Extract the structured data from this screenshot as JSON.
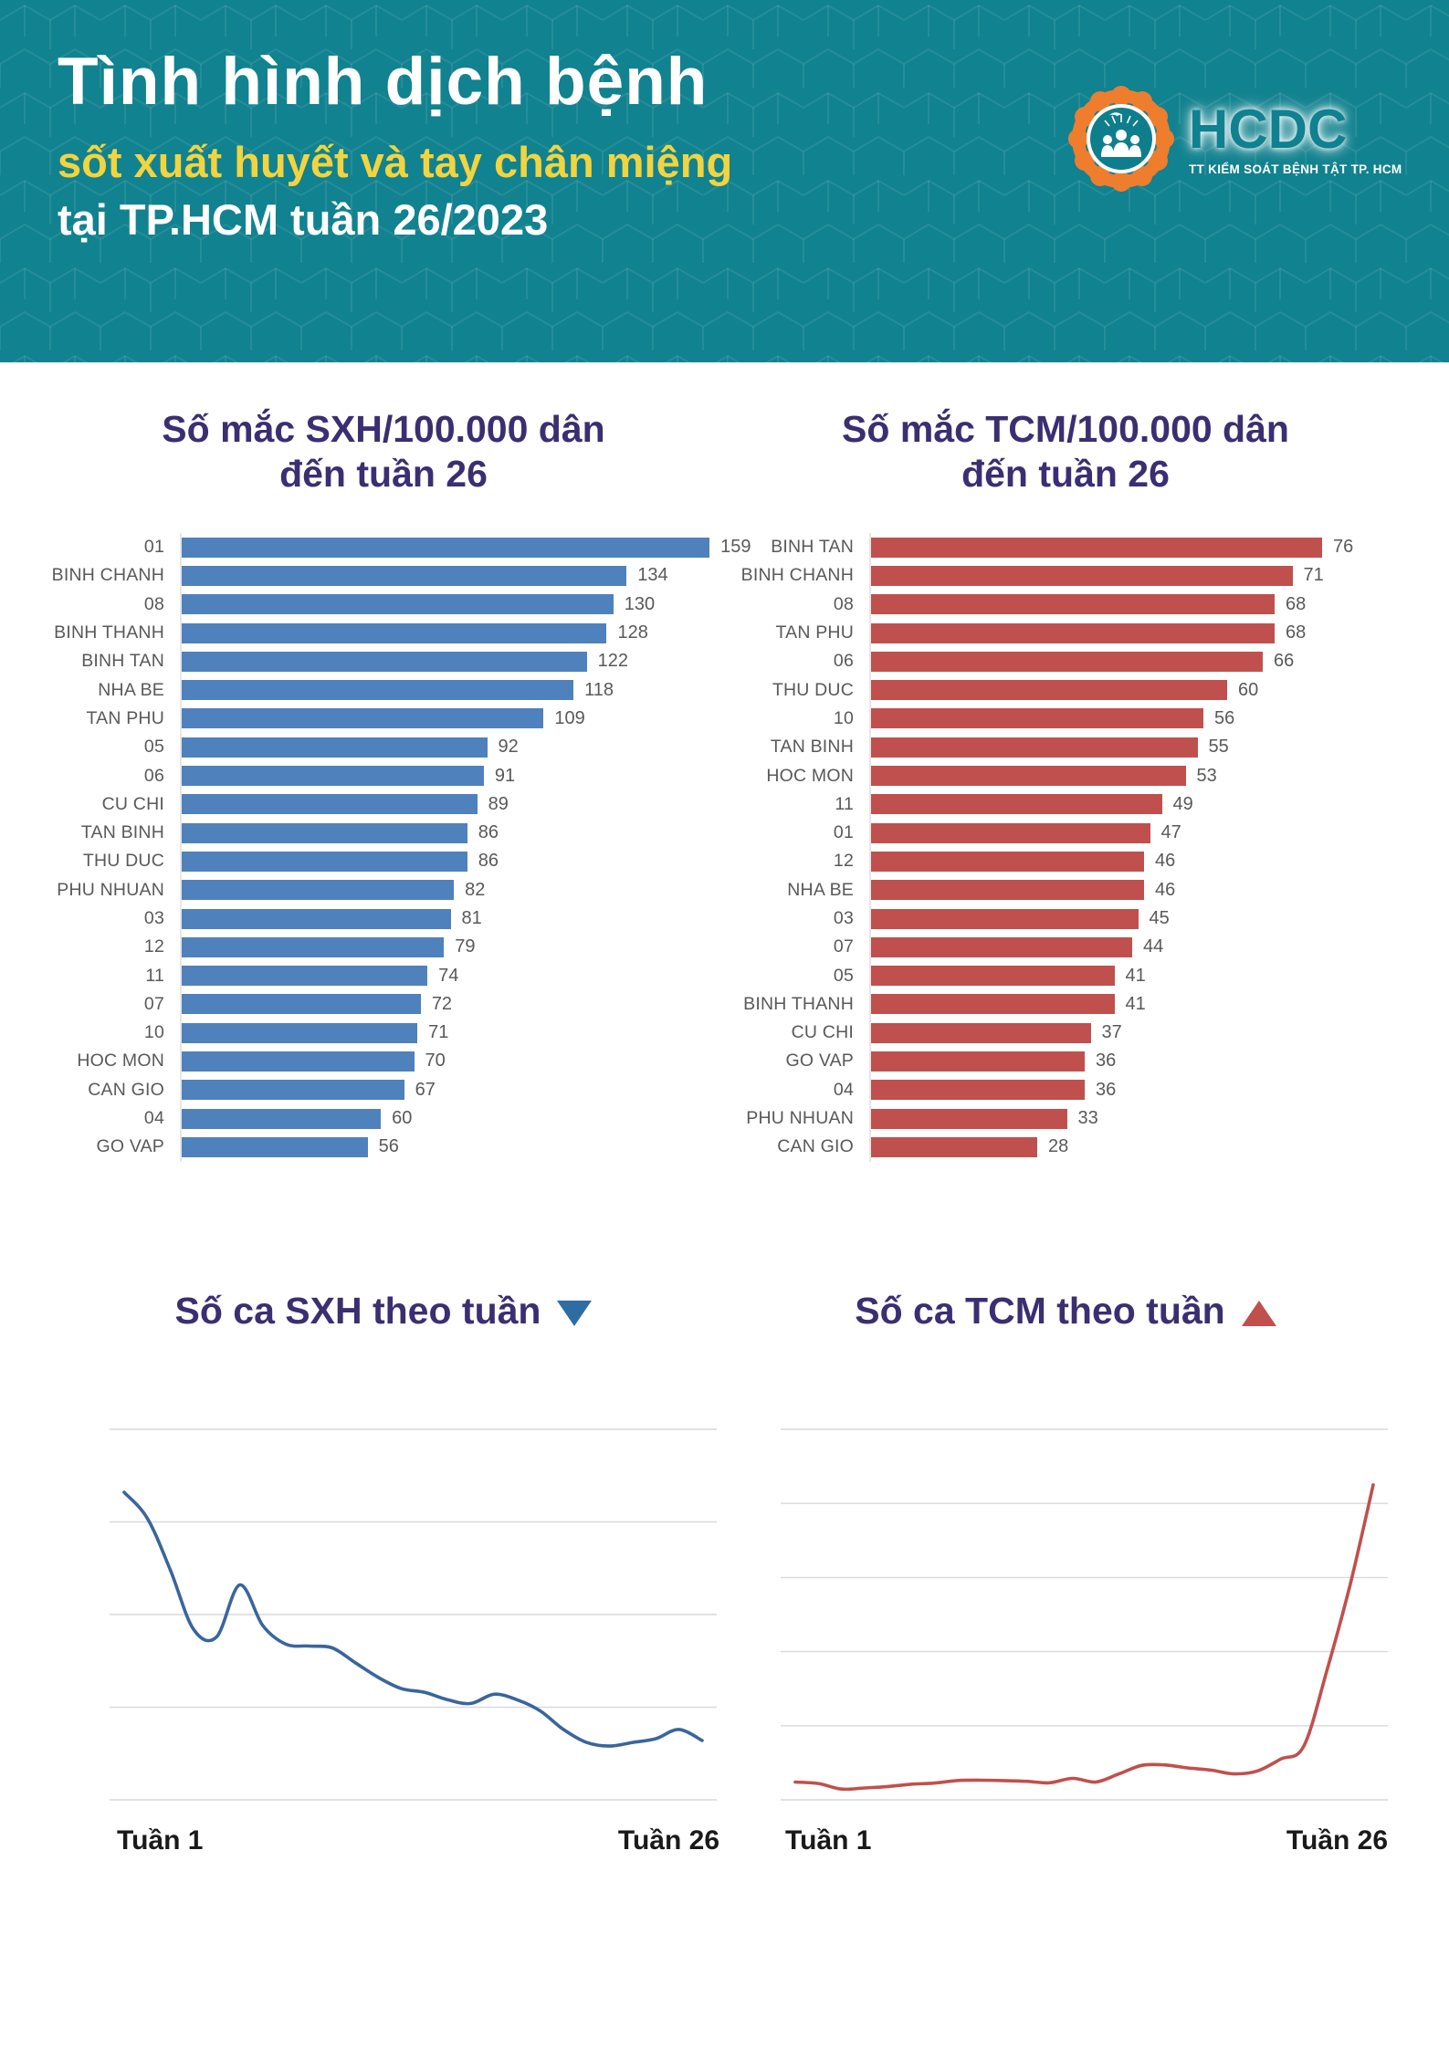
{
  "colors": {
    "teal": "#11828F",
    "yellow": "#F2D43F",
    "purple": "#3B2E71",
    "gray_label": "#595959",
    "gridline": "#D9D9D9",
    "axis_label": "#1A1A1A",
    "triangle_down": "#2E6DA4",
    "triangle_up": "#C0504D",
    "logo_orange": "#EE7D2E",
    "logo_teal": "#0E7E8C",
    "logo_teal_text": "#0F8190"
  },
  "header": {
    "title": "Tình hình dịch bệnh",
    "subtitle": "sốt xuất huyết và tay chân miệng",
    "location_line": "tại TP.HCM tuần 26/2023",
    "logo": {
      "text": "HCDC",
      "tagline": "TT KIỂM SOÁT BỆNH TẬT TP. HCM"
    }
  },
  "chart_data": [
    {
      "id": "sxh-incidence-bar",
      "type": "bar",
      "orientation": "horizontal",
      "title": "Số mắc SXH/100.000 dân đến tuần 26",
      "title_lines": [
        "Số mắc SXH/100.000 dân",
        "đến tuần 26"
      ],
      "categories": [
        "01",
        "BINH CHANH",
        "08",
        "BINH THANH",
        "BINH TAN",
        "NHA BE",
        "TAN PHU",
        "05",
        "06",
        "CU CHI",
        "TAN BINH",
        "THU DUC",
        "PHU NHUAN",
        "03",
        "12",
        "11",
        "07",
        "10",
        "HOC MON",
        "CAN GIO",
        "04",
        "GO VAP"
      ],
      "values": [
        159,
        134,
        130,
        128,
        122,
        118,
        109,
        92,
        91,
        89,
        86,
        86,
        82,
        81,
        79,
        74,
        72,
        71,
        70,
        67,
        60,
        56
      ],
      "color": "#4F81BD",
      "xlim": [
        0,
        165
      ],
      "grid": "off",
      "legend": "none",
      "value_labels": "shown at bar end"
    },
    {
      "id": "tcm-incidence-bar",
      "type": "bar",
      "orientation": "horizontal",
      "title": "Số mắc TCM/100.000 dân đến tuần 26",
      "title_lines": [
        "Số mắc TCM/100.000 dân",
        "đến tuần 26"
      ],
      "categories": [
        "BINH TAN",
        "BINH CHANH",
        "08",
        "TAN PHU",
        "06",
        "THU DUC",
        "10",
        "TAN BINH",
        "HOC MON",
        "11",
        "01",
        "12",
        "NHA BE",
        "03",
        "07",
        "05",
        "BINH THANH",
        "CU CHI",
        "GO VAP",
        "04",
        "PHU NHUAN",
        "CAN GIO"
      ],
      "values": [
        76,
        71,
        68,
        68,
        66,
        60,
        56,
        55,
        53,
        49,
        47,
        46,
        46,
        45,
        44,
        41,
        41,
        37,
        36,
        36,
        33,
        28
      ],
      "color": "#C0504D",
      "xlim": [
        0,
        80
      ],
      "grid": "off",
      "legend": "none",
      "value_labels": "shown at bar end"
    },
    {
      "id": "sxh-weekly-line",
      "type": "line",
      "title": "Số ca SXH theo tuần",
      "trend": "down",
      "x_labels": [
        "Tuần 1",
        "Tuần 26"
      ],
      "x_range": [
        1,
        26
      ],
      "yaxis": "unlabeled (relative scale 0-100 of plot height)",
      "gridlines": 5,
      "grid": "horizontal only",
      "color": "#3A659C",
      "values_relative": [
        83,
        76,
        62,
        46,
        44,
        58,
        47,
        42,
        41.5,
        41,
        37,
        33,
        30,
        29,
        27,
        26,
        28.5,
        27,
        24,
        19,
        15.5,
        14.5,
        15.5,
        16.5,
        19,
        16
      ]
    },
    {
      "id": "tcm-weekly-line",
      "type": "line",
      "title": "Số ca TCM theo tuần",
      "trend": "up",
      "x_labels": [
        "Tuần 1",
        "Tuần 26"
      ],
      "x_range": [
        1,
        26
      ],
      "yaxis": "unlabeled (relative scale 0-100 of plot height)",
      "gridlines": 6,
      "grid": "horizontal only",
      "color": "#C0504D",
      "values_relative": [
        4.8,
        4.4,
        2.9,
        3.2,
        3.6,
        4.2,
        4.5,
        5.2,
        5.3,
        5.2,
        5.0,
        4.6,
        5.8,
        4.8,
        7.0,
        9.3,
        9.4,
        8.6,
        8.0,
        7.0,
        7.8,
        11.0,
        14.5,
        35.0,
        58.0,
        85.0
      ]
    }
  ]
}
